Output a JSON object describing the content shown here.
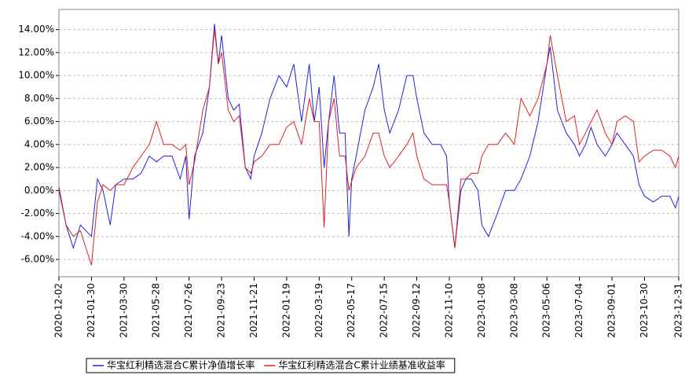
{
  "chart_data": {
    "type": "line",
    "x": [
      "2020-12-02",
      "2020-12-15",
      "2020-12-28",
      "2021-01-10",
      "2021-01-20",
      "2021-01-30",
      "2021-02-10",
      "2021-02-20",
      "2021-03-05",
      "2021-03-15",
      "2021-03-30",
      "2021-04-15",
      "2021-04-30",
      "2021-05-15",
      "2021-05-28",
      "2021-06-10",
      "2021-06-25",
      "2021-07-10",
      "2021-07-20",
      "2021-07-26",
      "2021-08-05",
      "2021-08-20",
      "2021-09-01",
      "2021-09-10",
      "2021-09-17",
      "2021-09-23",
      "2021-10-05",
      "2021-10-15",
      "2021-10-25",
      "2021-11-05",
      "2021-11-15",
      "2021-11-21",
      "2021-12-05",
      "2021-12-20",
      "2022-01-05",
      "2022-01-19",
      "2022-02-01",
      "2022-02-15",
      "2022-03-01",
      "2022-03-10",
      "2022-03-19",
      "2022-03-28",
      "2022-04-05",
      "2022-04-15",
      "2022-04-25",
      "2022-05-05",
      "2022-05-12",
      "2022-05-17",
      "2022-05-25",
      "2022-06-10",
      "2022-06-25",
      "2022-07-05",
      "2022-07-15",
      "2022-07-25",
      "2022-08-10",
      "2022-08-25",
      "2022-09-05",
      "2022-09-12",
      "2022-09-25",
      "2022-10-10",
      "2022-10-25",
      "2022-11-05",
      "2022-11-10",
      "2022-11-20",
      "2022-12-01",
      "2022-12-10",
      "2022-12-20",
      "2023-01-01",
      "2023-01-08",
      "2023-01-20",
      "2023-02-05",
      "2023-02-20",
      "2023-03-08",
      "2023-03-20",
      "2023-04-05",
      "2023-04-20",
      "2023-05-06",
      "2023-05-12",
      "2023-05-25",
      "2023-06-10",
      "2023-06-25",
      "2023-07-04",
      "2023-07-15",
      "2023-07-25",
      "2023-08-05",
      "2023-08-20",
      "2023-09-01",
      "2023-09-10",
      "2023-09-25",
      "2023-10-10",
      "2023-10-20",
      "2023-10-30",
      "2023-11-15",
      "2023-11-30",
      "2023-12-15",
      "2023-12-25",
      "2023-12-31"
    ],
    "series": [
      {
        "name": "华宝红利精选混合C累计净值增长率",
        "color": "#2222dd",
        "values": [
          0.3,
          -3,
          -5,
          -3,
          -3.5,
          -4,
          1,
          0,
          -3,
          0.5,
          1,
          1,
          1.5,
          3,
          2.5,
          3,
          3,
          1,
          3,
          -2.5,
          3,
          5,
          9,
          14.5,
          11,
          13.5,
          8,
          7,
          7.5,
          2,
          1,
          3,
          5,
          8,
          10,
          9,
          11,
          6,
          11,
          6,
          9,
          2,
          6,
          10,
          5,
          5,
          -4,
          1,
          3,
          7,
          9,
          11,
          7,
          5,
          7,
          10,
          10,
          8,
          5,
          4,
          4,
          3,
          -1,
          -5,
          0,
          1,
          1,
          0,
          -3,
          -4,
          -2,
          0,
          0,
          1,
          3,
          6,
          11,
          12.5,
          7,
          5,
          4,
          3,
          4,
          5.5,
          4,
          3,
          4,
          5,
          4,
          3,
          0.5,
          -0.5,
          -1,
          -0.5,
          -0.5,
          -1.5,
          -0.5
        ]
      },
      {
        "name": "华宝红利精选混合C累计业绩基准收益率",
        "color": "#dd2222",
        "values": [
          0,
          -3,
          -4,
          -3.5,
          -5,
          -6.5,
          -1,
          0.5,
          0,
          0.5,
          0.5,
          2,
          3,
          4,
          6,
          4,
          4,
          3.5,
          4,
          0.5,
          2.5,
          7,
          9,
          14,
          11,
          12,
          7,
          6,
          6.5,
          2,
          1.5,
          2.5,
          3,
          4,
          4,
          5.5,
          6,
          4,
          8,
          6,
          6,
          -3.2,
          6,
          8,
          3,
          3,
          0,
          0.8,
          2,
          3,
          5,
          5,
          3,
          2,
          3,
          4,
          5,
          3,
          1,
          0.5,
          0.5,
          0.5,
          -1,
          -5,
          1,
          1,
          1.5,
          1.5,
          3,
          4,
          4,
          5,
          4,
          8,
          6.5,
          8,
          11,
          13.5,
          10,
          6,
          6.5,
          4,
          5,
          6,
          7,
          5,
          4,
          6,
          6.5,
          6,
          2.5,
          3,
          3.5,
          3.5,
          3,
          2,
          3
        ]
      }
    ],
    "xlim": [
      "2020-12-02",
      "2023-12-31"
    ],
    "xticks": [
      "2020-12-02",
      "2021-01-30",
      "2021-03-30",
      "2021-05-28",
      "2021-07-26",
      "2021-09-23",
      "2021-11-21",
      "2022-01-19",
      "2022-03-19",
      "2022-05-17",
      "2022-07-15",
      "2022-09-12",
      "2022-11-10",
      "2023-01-08",
      "2023-03-08",
      "2023-05-06",
      "2023-07-04",
      "2023-09-01",
      "2023-10-30",
      "2023-12-31"
    ],
    "ylim": [
      -7.5,
      15.75
    ],
    "yticks": [
      {
        "value": -6,
        "label": "-6.00%"
      },
      {
        "value": -4,
        "label": "-4.00%"
      },
      {
        "value": -2,
        "label": "-2.00%"
      },
      {
        "value": 0,
        "label": "0.00%"
      },
      {
        "value": 2,
        "label": "2.00%"
      },
      {
        "value": 4,
        "label": "4.00%"
      },
      {
        "value": 6,
        "label": "6.00%"
      },
      {
        "value": 8,
        "label": "8.00%"
      },
      {
        "value": 10,
        "label": "10.00%"
      },
      {
        "value": 12,
        "label": "12.00%"
      },
      {
        "value": 14,
        "label": "14.00%"
      }
    ],
    "grid": true,
    "legend": "bottom"
  }
}
